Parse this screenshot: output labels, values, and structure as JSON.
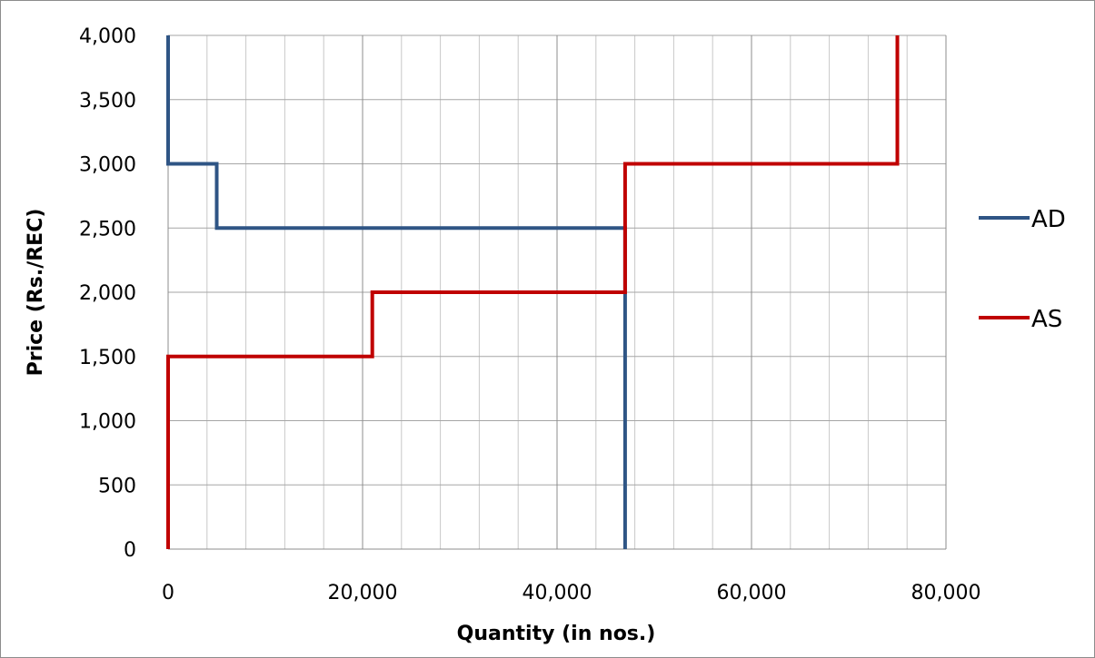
{
  "chart_data": {
    "type": "line",
    "title": "",
    "xlabel": "Quantity (in nos.)",
    "ylabel": "Price (Rs./REC)",
    "xlim": [
      0,
      80000
    ],
    "ylim": [
      0,
      4000
    ],
    "x_ticks": [
      0,
      20000,
      40000,
      60000,
      80000
    ],
    "x_tick_labels": [
      "0",
      "20,000",
      "40,000",
      "60,000",
      "80,000"
    ],
    "x_minor_step": 4000,
    "y_ticks": [
      0,
      500,
      1000,
      1500,
      2000,
      2500,
      3000,
      3500,
      4000
    ],
    "y_tick_labels": [
      "0",
      "500",
      "1,000",
      "1,500",
      "2,000",
      "2,500",
      "3,000",
      "3,500",
      "4,000"
    ],
    "grid": true,
    "legend_position": "right",
    "series": [
      {
        "name": "AD",
        "color": "#2f5585",
        "points": [
          [
            0,
            4000
          ],
          [
            0,
            3000
          ],
          [
            5000,
            3000
          ],
          [
            5000,
            2500
          ],
          [
            47000,
            2500
          ],
          [
            47000,
            0
          ]
        ]
      },
      {
        "name": "AS",
        "color": "#c00000",
        "points": [
          [
            0,
            0
          ],
          [
            0,
            1500
          ],
          [
            21000,
            1500
          ],
          [
            21000,
            2000
          ],
          [
            47000,
            2000
          ],
          [
            47000,
            3000
          ],
          [
            75000,
            3000
          ],
          [
            75000,
            4000
          ]
        ]
      }
    ]
  }
}
